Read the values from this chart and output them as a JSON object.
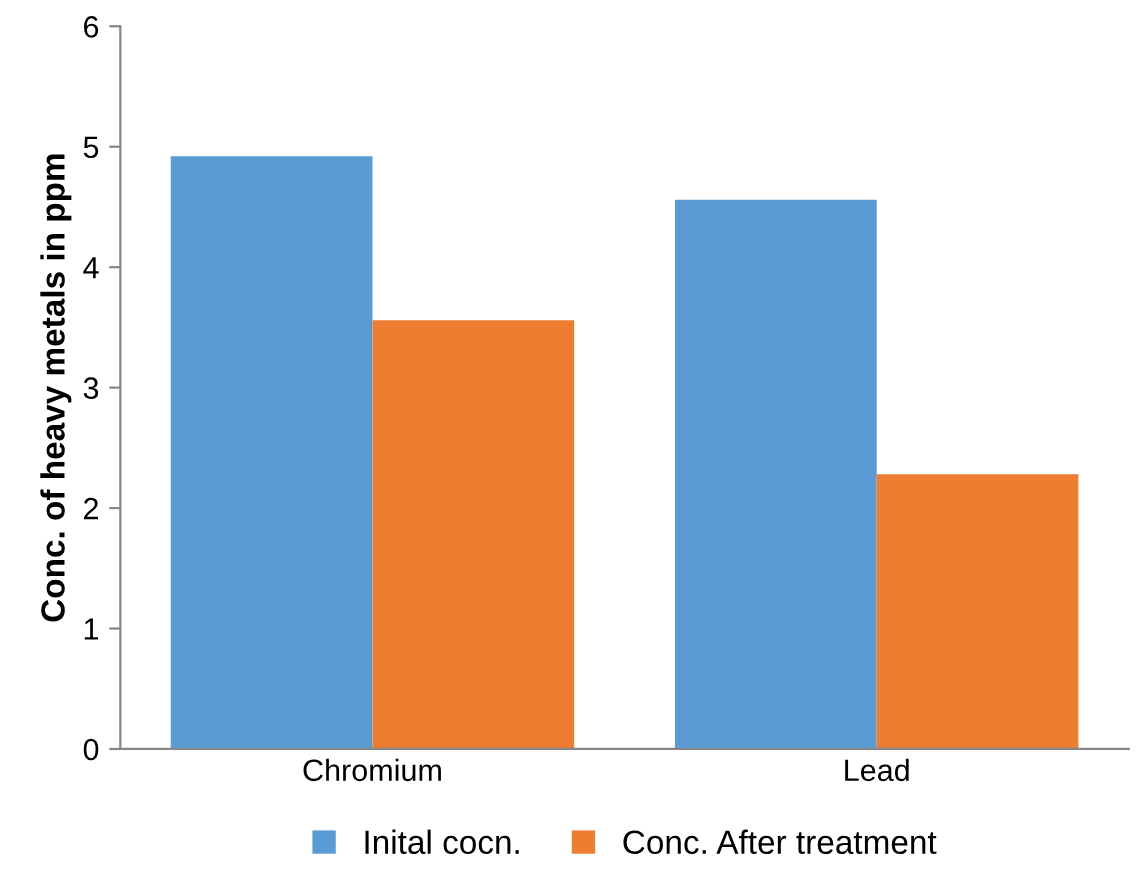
{
  "chart_data": {
    "type": "bar",
    "ylabel": "Conc. of heavy metals in ppm",
    "categories": [
      "Chromium",
      "Lead"
    ],
    "series": [
      {
        "name": "Inital cocn.",
        "color": "#5b9bd5",
        "values": [
          4.92,
          4.56
        ]
      },
      {
        "name": "Conc. After treatment",
        "color": "#ed7d31",
        "values": [
          3.56,
          2.28
        ]
      }
    ],
    "ylim": [
      0,
      6
    ],
    "yticks": [
      0,
      1,
      2,
      3,
      4,
      5,
      6
    ],
    "grid": false,
    "legend": "bottom"
  }
}
